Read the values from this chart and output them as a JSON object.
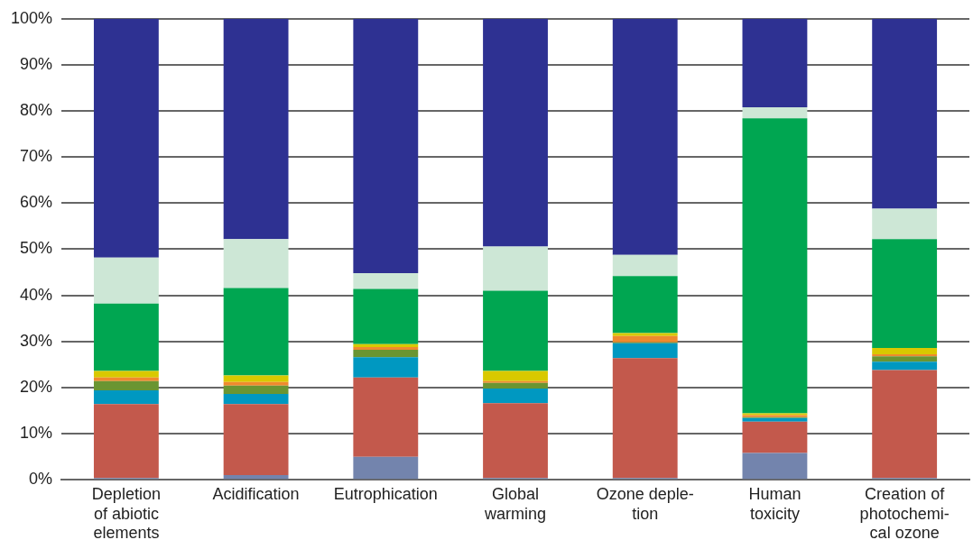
{
  "chart_data": {
    "type": "bar",
    "stacked": true,
    "grid": "y",
    "legend": false,
    "categories": [
      "Depletion\nof abiotic\nelements",
      "Acidification",
      "Eutrophication",
      "Global\nwarming",
      "Ozone deple-\ntion",
      "Human\ntoxicity",
      "Creation of\nphotochemi-\ncal ozone"
    ],
    "ylim": [
      0,
      100
    ],
    "yticks": [
      {
        "value": 0,
        "label": "0%"
      },
      {
        "value": 10,
        "label": "10%"
      },
      {
        "value": 20,
        "label": "20%"
      },
      {
        "value": 30,
        "label": "30%"
      },
      {
        "value": 40,
        "label": "40%"
      },
      {
        "value": 50,
        "label": "50%"
      },
      {
        "value": 60,
        "label": "60%"
      },
      {
        "value": 70,
        "label": "70%"
      },
      {
        "value": 80,
        "label": "80%"
      },
      {
        "value": 90,
        "label": "90%"
      },
      {
        "value": 100,
        "label": "100%"
      }
    ],
    "series": [
      {
        "color": "#7384ad",
        "values": [
          0.4,
          1.0,
          5.0,
          0.4,
          0.4,
          5.8,
          0.4
        ]
      },
      {
        "color": "#c3594c",
        "values": [
          16.0,
          15.4,
          17.2,
          16.2,
          26.0,
          6.8,
          23.4
        ]
      },
      {
        "color": "#0098c1",
        "values": [
          3.0,
          2.2,
          4.4,
          3.2,
          3.2,
          0.8,
          1.8
        ]
      },
      {
        "color": "#6a9532",
        "values": [
          2.0,
          1.8,
          1.6,
          1.2,
          0.2,
          0.2,
          1.2
        ]
      },
      {
        "color": "#f08a2e",
        "values": [
          0.8,
          0.8,
          0.6,
          0.4,
          1.4,
          0.4,
          0.4
        ]
      },
      {
        "color": "#d9c900",
        "values": [
          1.4,
          1.4,
          0.6,
          2.2,
          0.6,
          0.4,
          1.4
        ]
      },
      {
        "color": "#00a651",
        "values": [
          14.6,
          19.0,
          12.0,
          17.4,
          12.4,
          64.0,
          23.6
        ]
      },
      {
        "color": "#cde7d6",
        "values": [
          10.0,
          10.6,
          3.4,
          9.6,
          4.6,
          2.4,
          6.6
        ]
      },
      {
        "color": "#2e3192",
        "values": [
          51.8,
          47.8,
          55.2,
          49.4,
          51.2,
          19.2,
          41.2
        ]
      }
    ]
  }
}
